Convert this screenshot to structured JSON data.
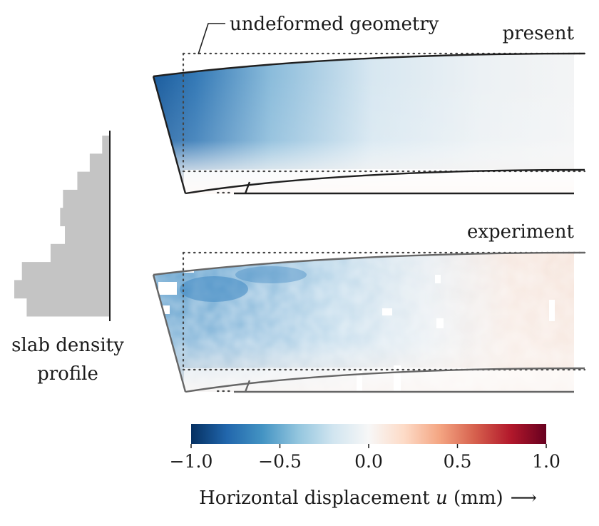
{
  "labels": {
    "undeformed": "undeformed geometry",
    "present": "present",
    "experiment": "experiment",
    "profile_line1": "slab density",
    "profile_line2": "profile",
    "colorbar_title_prefix": "Horizontal displacement ",
    "colorbar_title_symbol": "u",
    "colorbar_title_suffix": " (mm)",
    "arrow": "⟶"
  },
  "colorbar": {
    "ticks": [
      "−1.0",
      "−0.5",
      "0.0",
      "0.5",
      "1.0"
    ],
    "range": [
      -1.0,
      1.0
    ],
    "stops": [
      "#053061",
      "#2166ac",
      "#4393c3",
      "#92c5de",
      "#d1e5f0",
      "#f7f7f7",
      "#fddbc7",
      "#f4a582",
      "#d6604d",
      "#b2182b",
      "#67001f"
    ]
  },
  "density_profile": {
    "steps": [
      0.08,
      0.21,
      0.34,
      0.49,
      0.52,
      0.47,
      0.62,
      0.92,
      1.0,
      0.87
    ]
  },
  "colors": {
    "profile_fill": "#c4c4c4",
    "outline_present": "#1f1f1f",
    "outline_experiment": "#666666",
    "dotted": "#444444"
  }
}
